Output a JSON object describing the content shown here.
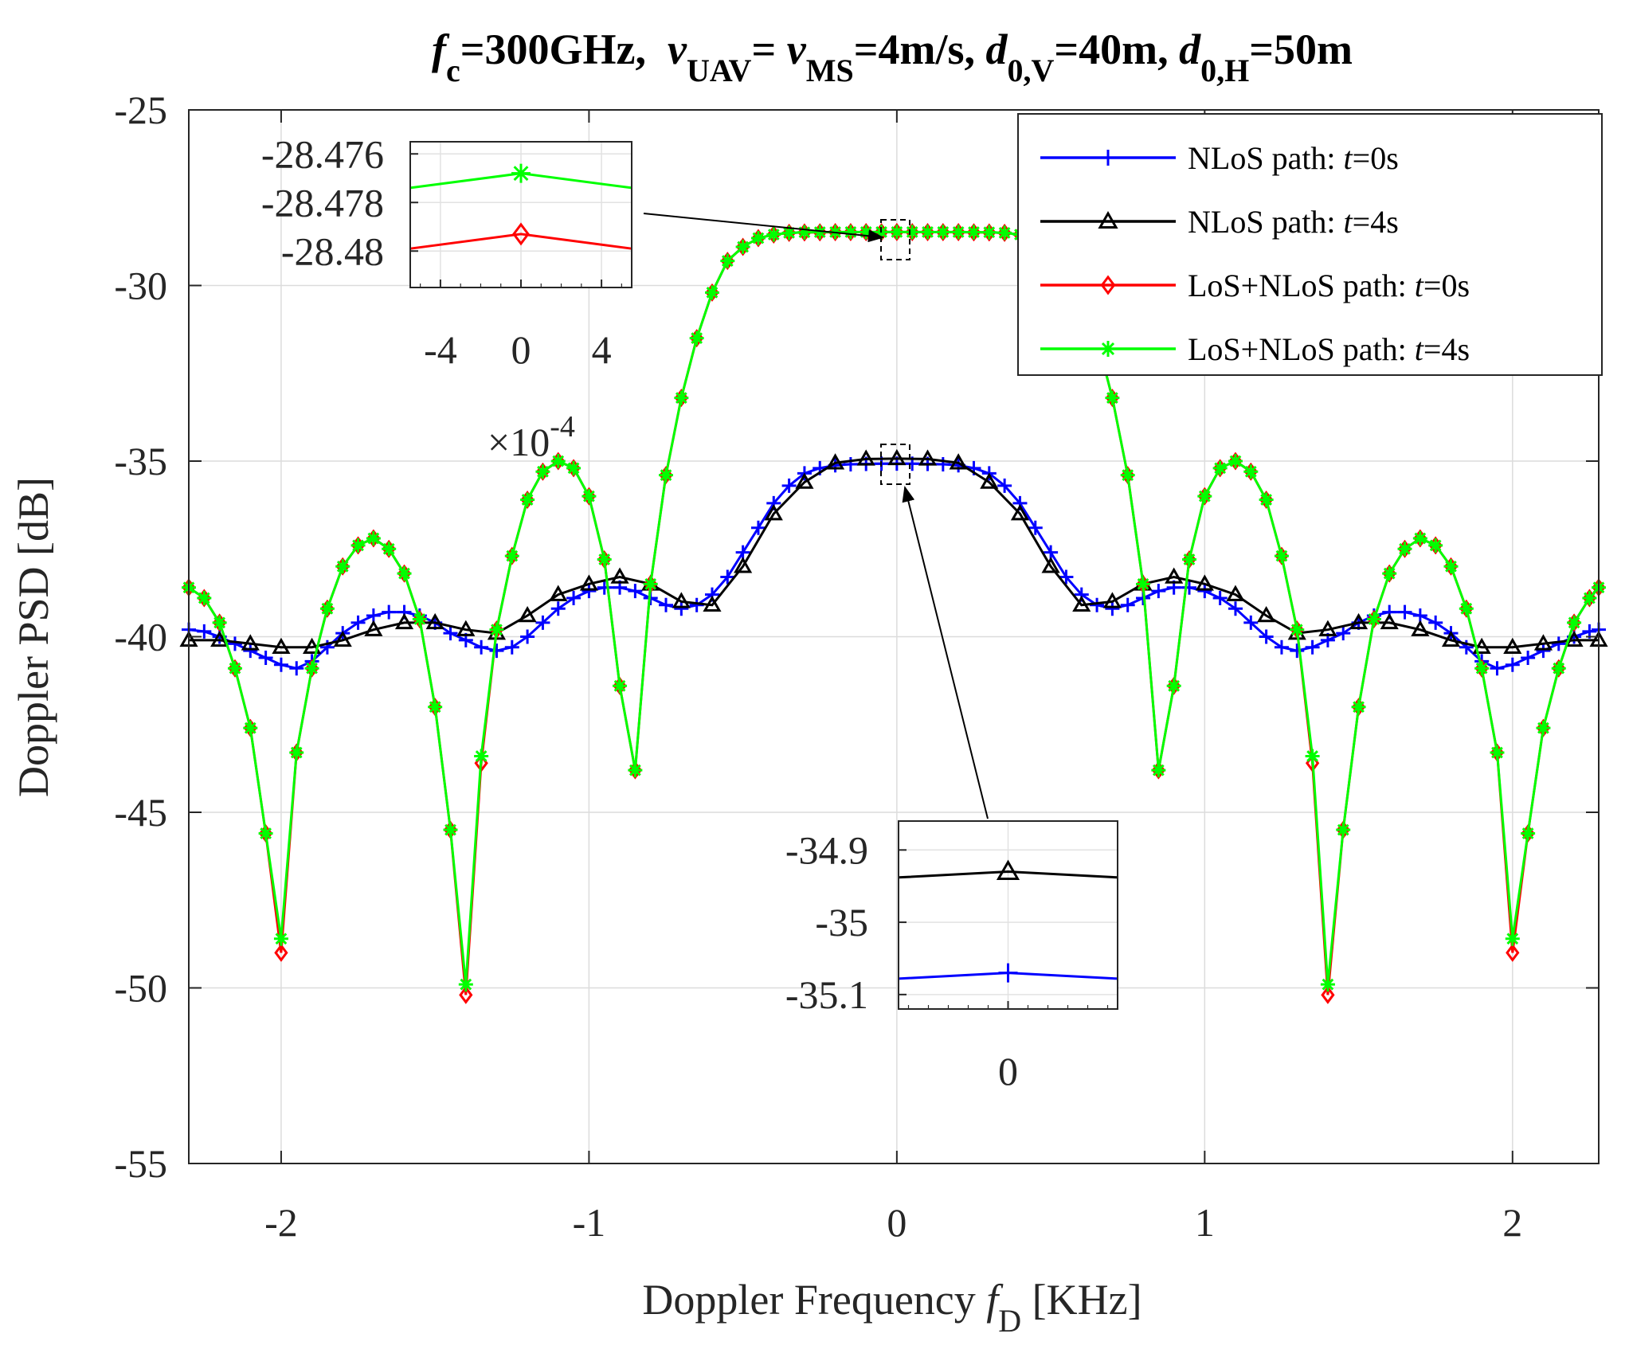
{
  "chart_data": {
    "type": "line",
    "title": {
      "prefix_f": "f",
      "prefix_sub": "c",
      "part1": "=300GHz,  ",
      "v1": "v",
      "v1_sub": "UAV",
      "part2": "= ",
      "v2": "v",
      "v2_sub": "MS",
      "part3": "=4m/s, ",
      "d1": "d",
      "d1_sub": "0,V",
      "part4": "=40m, ",
      "d2": "d",
      "d2_sub": "0,H",
      "part5": "=50m"
    },
    "xlabel": {
      "text": "Doppler Frequency ",
      "sym": "f",
      "sub": "D",
      "unit": " [KHz]"
    },
    "ylabel": "Doppler PSD [dB]",
    "xlim": [
      -2.3,
      2.28
    ],
    "ylim": [
      -55,
      -25
    ],
    "xticks": [
      -2,
      -1,
      0,
      1,
      2
    ],
    "xtick_labels": [
      "-2",
      "-1",
      "0",
      "1",
      "2"
    ],
    "yticks": [
      -55,
      -50,
      -45,
      -40,
      -35,
      -30,
      -25
    ],
    "ytick_labels": [
      "-55",
      "-50",
      "-45",
      "-40",
      "-35",
      "-30",
      "-25"
    ],
    "grid": true,
    "legend_position": "top-right",
    "series": [
      {
        "name": "NLoS path:  t=0s",
        "legend_label": "NLoS path:  ",
        "legend_t": "t",
        "legend_suffix": "=0s",
        "color": "#0000ff",
        "marker": "plus",
        "x": [
          -2.3,
          -2.25,
          -2.2,
          -2.15,
          -2.1,
          -2.05,
          -2,
          -1.95,
          -1.9,
          -1.85,
          -1.8,
          -1.75,
          -1.7,
          -1.65,
          -1.6,
          -1.55,
          -1.5,
          -1.45,
          -1.4,
          -1.35,
          -1.3,
          -1.25,
          -1.2,
          -1.15,
          -1.1,
          -1.05,
          -1,
          -0.95,
          -0.9,
          -0.85,
          -0.8,
          -0.75,
          -0.7,
          -0.65,
          -0.6,
          -0.55,
          -0.5,
          -0.45,
          -0.4,
          -0.35,
          -0.3,
          -0.25,
          -0.2,
          -0.15,
          -0.1,
          -0.05,
          0,
          0.05,
          0.1,
          0.15,
          0.2,
          0.25,
          0.3,
          0.35,
          0.4,
          0.45,
          0.5,
          0.55,
          0.6,
          0.65,
          0.7,
          0.75,
          0.8,
          0.85,
          0.9,
          0.95,
          1,
          1.05,
          1.1,
          1.15,
          1.2,
          1.25,
          1.3,
          1.35,
          1.4,
          1.45,
          1.5,
          1.55,
          1.6,
          1.65,
          1.7,
          1.75,
          1.8,
          1.85,
          1.9,
          1.95,
          2,
          2.05,
          2.1,
          2.15,
          2.2,
          2.25,
          2.28
        ],
        "y": [
          -39.8,
          -39.85,
          -40,
          -40.2,
          -40.4,
          -40.6,
          -40.8,
          -40.9,
          -40.7,
          -40.3,
          -39.9,
          -39.6,
          -39.4,
          -39.3,
          -39.3,
          -39.4,
          -39.6,
          -39.9,
          -40.1,
          -40.3,
          -40.4,
          -40.3,
          -40.0,
          -39.6,
          -39.2,
          -38.9,
          -38.7,
          -38.6,
          -38.6,
          -38.7,
          -38.9,
          -39.1,
          -39.2,
          -39.1,
          -38.8,
          -38.3,
          -37.6,
          -36.9,
          -36.2,
          -35.7,
          -35.35,
          -35.2,
          -35.12,
          -35.09,
          -35.08,
          -35.075,
          -35.07,
          -35.075,
          -35.08,
          -35.09,
          -35.12,
          -35.2,
          -35.35,
          -35.7,
          -36.2,
          -36.9,
          -37.6,
          -38.3,
          -38.8,
          -39.1,
          -39.2,
          -39.1,
          -38.9,
          -38.7,
          -38.6,
          -38.6,
          -38.7,
          -38.9,
          -39.2,
          -39.6,
          -40.0,
          -40.3,
          -40.4,
          -40.3,
          -40.1,
          -39.9,
          -39.6,
          -39.4,
          -39.3,
          -39.3,
          -39.4,
          -39.6,
          -39.9,
          -40.3,
          -40.7,
          -40.9,
          -40.8,
          -40.6,
          -40.4,
          -40.2,
          -40.0,
          -39.85,
          -39.8
        ]
      },
      {
        "name": "NLoS path:  t=4s",
        "legend_label": "NLoS path:  ",
        "legend_t": "t",
        "legend_suffix": "=4s",
        "color": "#000000",
        "marker": "triangle",
        "x": [
          -2.3,
          -2.2,
          -2.1,
          -2.0,
          -1.9,
          -1.8,
          -1.7,
          -1.6,
          -1.5,
          -1.4,
          -1.3,
          -1.2,
          -1.1,
          -1.0,
          -0.9,
          -0.8,
          -0.7,
          -0.6,
          -0.5,
          -0.4,
          -0.3,
          -0.2,
          -0.1,
          0,
          0.1,
          0.2,
          0.3,
          0.4,
          0.5,
          0.6,
          0.7,
          0.8,
          0.9,
          1.0,
          1.1,
          1.2,
          1.3,
          1.4,
          1.5,
          1.6,
          1.7,
          1.8,
          1.9,
          2.0,
          2.1,
          2.2,
          2.28
        ],
        "y": [
          -40.1,
          -40.1,
          -40.2,
          -40.3,
          -40.3,
          -40.1,
          -39.8,
          -39.6,
          -39.6,
          -39.8,
          -39.9,
          -39.4,
          -38.8,
          -38.5,
          -38.3,
          -38.5,
          -39.0,
          -39.1,
          -38.0,
          -36.5,
          -35.6,
          -35.05,
          -34.94,
          -34.93,
          -34.94,
          -35.05,
          -35.6,
          -36.5,
          -38.0,
          -39.1,
          -39.0,
          -38.5,
          -38.3,
          -38.5,
          -38.8,
          -39.4,
          -39.9,
          -39.8,
          -39.6,
          -39.6,
          -39.8,
          -40.1,
          -40.3,
          -40.3,
          -40.2,
          -40.1,
          -40.1
        ]
      },
      {
        "name": "LoS+NLoS path:  t=0s",
        "legend_label": "LoS+NLoS path:  ",
        "legend_t": "t",
        "legend_suffix": "=0s",
        "color": "#ff0000",
        "marker": "diamond",
        "x": [
          -2.3,
          -2.25,
          -2.2,
          -2.15,
          -2.1,
          -2.05,
          -2,
          -1.95,
          -1.9,
          -1.85,
          -1.8,
          -1.75,
          -1.7,
          -1.65,
          -1.6,
          -1.55,
          -1.5,
          -1.45,
          -1.4,
          -1.35,
          -1.3,
          -1.25,
          -1.2,
          -1.15,
          -1.1,
          -1.05,
          -1,
          -0.95,
          -0.9,
          -0.85,
          -0.8,
          -0.75,
          -0.7,
          -0.65,
          -0.6,
          -0.55,
          -0.5,
          -0.45,
          -0.4,
          -0.35,
          -0.3,
          -0.25,
          -0.2,
          -0.15,
          -0.1,
          -0.05,
          0,
          0.05,
          0.1,
          0.15,
          0.2,
          0.25,
          0.3,
          0.35,
          0.4,
          0.45,
          0.5,
          0.55,
          0.6,
          0.65,
          0.7,
          0.75,
          0.8,
          0.85,
          0.9,
          0.95,
          1,
          1.05,
          1.1,
          1.15,
          1.2,
          1.25,
          1.3,
          1.35,
          1.4,
          1.45,
          1.5,
          1.55,
          1.6,
          1.65,
          1.7,
          1.75,
          1.8,
          1.85,
          1.9,
          1.95,
          2,
          2.05,
          2.1,
          2.15,
          2.2,
          2.25,
          2.28
        ],
        "y": [
          -38.6,
          -38.9,
          -39.6,
          -40.9,
          -42.6,
          -45.6,
          -49.0,
          -43.3,
          -40.9,
          -39.2,
          -38.0,
          -37.4,
          -37.2,
          -37.5,
          -38.2,
          -39.5,
          -42.0,
          -45.5,
          -50.2,
          -43.6,
          -39.8,
          -37.7,
          -36.1,
          -35.3,
          -35.0,
          -35.2,
          -36.0,
          -37.8,
          -41.4,
          -43.8,
          -38.5,
          -35.4,
          -33.2,
          -31.5,
          -30.2,
          -29.3,
          -28.9,
          -28.65,
          -28.55,
          -28.5,
          -28.49,
          -28.485,
          -28.482,
          -28.481,
          -28.4805,
          -28.48,
          -28.4793,
          -28.48,
          -28.4805,
          -28.481,
          -28.482,
          -28.485,
          -28.49,
          -28.5,
          -28.55,
          -28.65,
          -28.9,
          -29.3,
          -30.2,
          -31.5,
          -33.2,
          -35.4,
          -38.5,
          -43.8,
          -41.4,
          -37.8,
          -36.0,
          -35.2,
          -35.0,
          -35.3,
          -36.1,
          -37.7,
          -39.8,
          -43.6,
          -50.2,
          -45.5,
          -42.0,
          -39.5,
          -38.2,
          -37.5,
          -37.2,
          -37.4,
          -38.0,
          -39.2,
          -40.9,
          -43.3,
          -49.0,
          -45.6,
          -42.6,
          -40.9,
          -39.6,
          -38.9,
          -38.6
        ]
      },
      {
        "name": "LoS+NLoS path:  t=4s",
        "legend_label": "LoS+NLoS path:  ",
        "legend_t": "t",
        "legend_suffix": "=4s",
        "color": "#00ff00",
        "marker": "star",
        "x": [
          -2.3,
          -2.25,
          -2.2,
          -2.15,
          -2.1,
          -2.05,
          -2,
          -1.95,
          -1.9,
          -1.85,
          -1.8,
          -1.75,
          -1.7,
          -1.65,
          -1.6,
          -1.55,
          -1.5,
          -1.45,
          -1.4,
          -1.35,
          -1.3,
          -1.25,
          -1.2,
          -1.15,
          -1.1,
          -1.05,
          -1,
          -0.95,
          -0.9,
          -0.85,
          -0.8,
          -0.75,
          -0.7,
          -0.65,
          -0.6,
          -0.55,
          -0.5,
          -0.45,
          -0.4,
          -0.35,
          -0.3,
          -0.25,
          -0.2,
          -0.15,
          -0.1,
          -0.05,
          0,
          0.05,
          0.1,
          0.15,
          0.2,
          0.25,
          0.3,
          0.35,
          0.4,
          0.45,
          0.5,
          0.55,
          0.6,
          0.65,
          0.7,
          0.75,
          0.8,
          0.85,
          0.9,
          0.95,
          1,
          1.05,
          1.1,
          1.15,
          1.2,
          1.25,
          1.3,
          1.35,
          1.4,
          1.45,
          1.5,
          1.55,
          1.6,
          1.65,
          1.7,
          1.75,
          1.8,
          1.85,
          1.9,
          1.95,
          2,
          2.05,
          2.1,
          2.15,
          2.2,
          2.25,
          2.28
        ],
        "y": [
          -38.6,
          -38.9,
          -39.6,
          -40.9,
          -42.6,
          -45.6,
          -48.6,
          -43.3,
          -40.9,
          -39.2,
          -38.0,
          -37.4,
          -37.2,
          -37.5,
          -38.2,
          -39.5,
          -42.0,
          -45.5,
          -49.9,
          -43.4,
          -39.8,
          -37.7,
          -36.1,
          -35.3,
          -35.0,
          -35.2,
          -36.0,
          -37.8,
          -41.4,
          -43.8,
          -38.5,
          -35.4,
          -33.2,
          -31.5,
          -30.2,
          -29.3,
          -28.9,
          -28.65,
          -28.55,
          -28.5,
          -28.485,
          -28.48,
          -28.479,
          -28.478,
          -28.4775,
          -28.4773,
          -28.4768,
          -28.4773,
          -28.4775,
          -28.478,
          -28.479,
          -28.48,
          -28.485,
          -28.5,
          -28.55,
          -28.65,
          -28.9,
          -29.3,
          -30.2,
          -31.5,
          -33.2,
          -35.4,
          -38.5,
          -43.8,
          -41.4,
          -37.8,
          -36.0,
          -35.2,
          -35.0,
          -35.3,
          -36.1,
          -37.7,
          -39.8,
          -43.4,
          -49.9,
          -45.5,
          -42.0,
          -39.5,
          -38.2,
          -37.5,
          -37.2,
          -37.4,
          -38.0,
          -39.2,
          -40.9,
          -43.3,
          -48.6,
          -45.6,
          -42.6,
          -40.9,
          -39.6,
          -38.9,
          -38.6
        ]
      }
    ],
    "insets": [
      {
        "id": "upper",
        "xlim": [
          -5.5,
          5.5
        ],
        "ylim": [
          -28.4815,
          -28.4755
        ],
        "xticks": [
          -4,
          0,
          4
        ],
        "xtick_labels": [
          "-4",
          "0",
          "4"
        ],
        "yticks": [
          -28.476,
          -28.478,
          -28.48
        ],
        "ytick_labels": [
          "-28.476",
          "-28.478",
          "-28.48"
        ],
        "x_multiplier": "×10",
        "x_multiplier_exp": "-4",
        "series": [
          {
            "ref": 3,
            "color": "#00ff00",
            "marker": "star",
            "x": [
              -5.5,
              0,
              5.5
            ],
            "y": [
              -28.4774,
              -28.4768,
              -28.4774
            ]
          },
          {
            "ref": 2,
            "color": "#ff0000",
            "marker": "diamond",
            "x": [
              -5.5,
              0,
              5.5
            ],
            "y": [
              -28.4799,
              -28.4793,
              -28.4799
            ]
          }
        ],
        "zoom_target": {
          "x": 0,
          "y": -28.48
        }
      },
      {
        "id": "lower",
        "xlim": [
          -5.5,
          5.5
        ],
        "ylim": [
          -35.12,
          -34.86
        ],
        "xticks": [
          0
        ],
        "xtick_labels": [
          "0"
        ],
        "yticks": [
          -34.9,
          -35,
          -35.1
        ],
        "ytick_labels": [
          "-34.9",
          "-35",
          "-35.1"
        ],
        "series": [
          {
            "ref": 1,
            "color": "#000000",
            "marker": "triangle",
            "x": [
              -5.5,
              0,
              5.5
            ],
            "y": [
              -34.938,
              -34.93,
              -34.938
            ]
          },
          {
            "ref": 0,
            "color": "#0000ff",
            "marker": "plus",
            "x": [
              -5.5,
              0,
              5.5
            ],
            "y": [
              -35.078,
              -35.07,
              -35.078
            ]
          }
        ],
        "zoom_target": {
          "x": 0,
          "y": -35.0
        }
      }
    ]
  }
}
